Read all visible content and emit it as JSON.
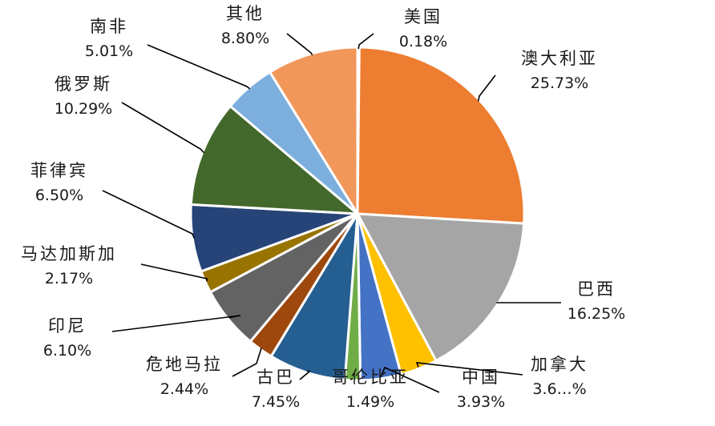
{
  "chart_data": {
    "type": "pie",
    "title": "",
    "slices": [
      {
        "label": "美国",
        "value": 0.18,
        "value_text": "0.18%",
        "color": "#b3c6e7"
      },
      {
        "label": "澳大利亚",
        "value": 25.73,
        "value_text": "25.73%",
        "color": "#ed7d31"
      },
      {
        "label": "巴西",
        "value": 16.25,
        "value_text": "16.25%",
        "color": "#a5a5a5"
      },
      {
        "label": "加拿大",
        "value": 3.6,
        "value_text": "3.6…%",
        "color": "#ffc000"
      },
      {
        "label": "中国",
        "value": 3.93,
        "value_text": "3.93%",
        "color": "#4472c4"
      },
      {
        "label": "哥伦比亚",
        "value": 1.49,
        "value_text": "1.49%",
        "color": "#70ad47"
      },
      {
        "label": "古巴",
        "value": 7.45,
        "value_text": "7.45%",
        "color": "#255e91"
      },
      {
        "label": "危地马拉",
        "value": 2.44,
        "value_text": "2.44%",
        "color": "#9e480e"
      },
      {
        "label": "印尼",
        "value": 6.1,
        "value_text": "6.10%",
        "color": "#636363"
      },
      {
        "label": "马达加斯加",
        "value": 2.17,
        "value_text": "2.17%",
        "color": "#997300"
      },
      {
        "label": "菲律宾",
        "value": 6.5,
        "value_text": "6.50%",
        "color": "#264478"
      },
      {
        "label": "俄罗斯",
        "value": 10.29,
        "value_text": "10.29%",
        "color": "#43682b"
      },
      {
        "label": "南非",
        "value": 5.01,
        "value_text": "5.01%",
        "color": "#7cafdd"
      },
      {
        "label": "其他",
        "value": 8.8,
        "value_text": "8.80%",
        "color": "#f1975a"
      }
    ]
  }
}
